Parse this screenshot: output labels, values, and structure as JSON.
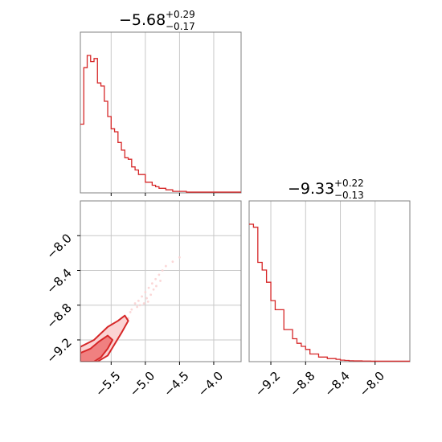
{
  "colors": {
    "line": "#d62728",
    "fill_inner": "#f08080",
    "fill_outer": "#fbd3d3",
    "grid": "#c8c8c8",
    "frame": "#808080"
  },
  "chart_data": [
    {
      "type": "histogram",
      "panel": "top-left",
      "title": {
        "main": "−5.68",
        "sup": "+0.29",
        "sub": "−0.17"
      },
      "xlim": [
        -5.95,
        -3.6
      ],
      "x_ticks": [
        -5.5,
        -5.0,
        -4.5,
        -4.0
      ],
      "bins_x": [
        -5.95,
        -5.9,
        -5.85,
        -5.8,
        -5.75,
        -5.7,
        -5.65,
        -5.6,
        -5.55,
        -5.5,
        -5.45,
        -5.4,
        -5.35,
        -5.3,
        -5.25,
        -5.2,
        -5.15,
        -5.1,
        -5.05,
        -5.0,
        -4.95,
        -4.9,
        -4.85,
        -4.8,
        -4.75,
        -4.7,
        -4.65,
        -4.6,
        -4.55,
        -4.5,
        -4.45,
        -4.4,
        -4.35,
        -4.3,
        -4.25,
        -4.2,
        -4.15,
        -4.1,
        -4.05,
        -4.0,
        -3.95,
        -3.9,
        -3.85,
        -3.8,
        -3.75,
        -3.7,
        -3.65,
        -3.6
      ],
      "counts": [
        0.45,
        0.82,
        0.9,
        0.86,
        0.88,
        0.72,
        0.7,
        0.6,
        0.5,
        0.42,
        0.4,
        0.33,
        0.28,
        0.23,
        0.22,
        0.17,
        0.15,
        0.12,
        0.12,
        0.07,
        0.07,
        0.05,
        0.04,
        0.03,
        0.03,
        0.02,
        0.02,
        0.01,
        0.01,
        0.01,
        0.01,
        0.005,
        0.005,
        0.005,
        0.005,
        0.005,
        0.005,
        0.005,
        0.005,
        0.005,
        0.005,
        0.005,
        0.005,
        0.005,
        0.005,
        0.005,
        0.005
      ],
      "ymax": 1.0
    },
    {
      "type": "histogram",
      "panel": "bottom-right",
      "title": {
        "main": "−9.33",
        "sup": "+0.22",
        "sub": "−0.13"
      },
      "xlim": [
        -9.45,
        -7.6
      ],
      "x_ticks": [
        -9.2,
        -8.8,
        -8.4,
        -8.0
      ],
      "bins_x": [
        -9.45,
        -9.4,
        -9.35,
        -9.3,
        -9.25,
        -9.2,
        -9.15,
        -9.1,
        -9.05,
        -9.0,
        -8.95,
        -8.9,
        -8.85,
        -8.8,
        -8.75,
        -8.7,
        -8.65,
        -8.6,
        -8.55,
        -8.5,
        -8.45,
        -8.4,
        -8.35,
        -8.3,
        -8.25,
        -8.2,
        -8.15,
        -8.1,
        -8.05,
        -8.0,
        -7.95,
        -7.9,
        -7.85,
        -7.8,
        -7.75,
        -7.7,
        -7.65,
        -7.6
      ],
      "counts": [
        0.9,
        0.88,
        0.65,
        0.6,
        0.52,
        0.4,
        0.34,
        0.34,
        0.21,
        0.21,
        0.15,
        0.12,
        0.1,
        0.08,
        0.05,
        0.05,
        0.03,
        0.03,
        0.02,
        0.02,
        0.015,
        0.01,
        0.008,
        0.006,
        0.005,
        0.005,
        0.004,
        0.004,
        0.003,
        0.003,
        0.003,
        0.003,
        0.003,
        0.003,
        0.003,
        0.003,
        0.003
      ],
      "ymax": 1.0
    },
    {
      "type": "scatter",
      "panel": "bottom-left",
      "xlim": [
        -5.95,
        -3.6
      ],
      "ylim": [
        -9.45,
        -7.6
      ],
      "x_ticks": [
        -5.5,
        -5.0,
        -4.5,
        -4.0
      ],
      "y_ticks": [
        -9.2,
        -8.8,
        -8.4,
        -8.0
      ],
      "contours": [
        {
          "level": "outer",
          "points": [
            [
              -5.95,
              -9.45
            ],
            [
              -5.95,
              -9.28
            ],
            [
              -5.75,
              -9.2
            ],
            [
              -5.55,
              -9.05
            ],
            [
              -5.4,
              -8.98
            ],
            [
              -5.3,
              -8.92
            ],
            [
              -5.25,
              -8.98
            ],
            [
              -5.35,
              -9.12
            ],
            [
              -5.45,
              -9.25
            ],
            [
              -5.55,
              -9.38
            ],
            [
              -5.7,
              -9.45
            ]
          ]
        },
        {
          "level": "inner",
          "points": [
            [
              -5.95,
              -9.45
            ],
            [
              -5.95,
              -9.35
            ],
            [
              -5.8,
              -9.3
            ],
            [
              -5.68,
              -9.22
            ],
            [
              -5.55,
              -9.15
            ],
            [
              -5.48,
              -9.2
            ],
            [
              -5.55,
              -9.3
            ],
            [
              -5.65,
              -9.4
            ],
            [
              -5.75,
              -9.45
            ]
          ]
        }
      ],
      "points": [
        [
          -5.2,
          -8.85
        ],
        [
          -5.15,
          -8.78
        ],
        [
          -5.1,
          -8.75
        ],
        [
          -5.05,
          -8.7
        ],
        [
          -5.0,
          -8.65
        ],
        [
          -4.95,
          -8.6
        ],
        [
          -4.9,
          -8.55
        ],
        [
          -4.85,
          -8.5
        ],
        [
          -4.8,
          -8.45
        ],
        [
          -4.75,
          -8.4
        ],
        [
          -4.7,
          -8.35
        ],
        [
          -4.6,
          -8.3
        ],
        [
          -4.5,
          -8.25
        ],
        [
          -5.25,
          -8.95
        ],
        [
          -5.3,
          -9.0
        ],
        [
          -5.12,
          -8.82
        ],
        [
          -5.02,
          -8.78
        ],
        [
          -4.98,
          -8.72
        ],
        [
          -4.92,
          -8.68
        ],
        [
          -4.88,
          -8.62
        ],
        [
          -5.4,
          -9.05
        ],
        [
          -5.45,
          -9.1
        ],
        [
          -5.5,
          -9.12
        ],
        [
          -5.6,
          -9.2
        ],
        [
          -5.35,
          -8.98
        ],
        [
          -5.22,
          -8.88
        ],
        [
          -5.08,
          -8.8
        ],
        [
          -4.96,
          -8.76
        ],
        [
          -4.84,
          -8.58
        ],
        [
          -4.78,
          -8.52
        ]
      ]
    }
  ]
}
